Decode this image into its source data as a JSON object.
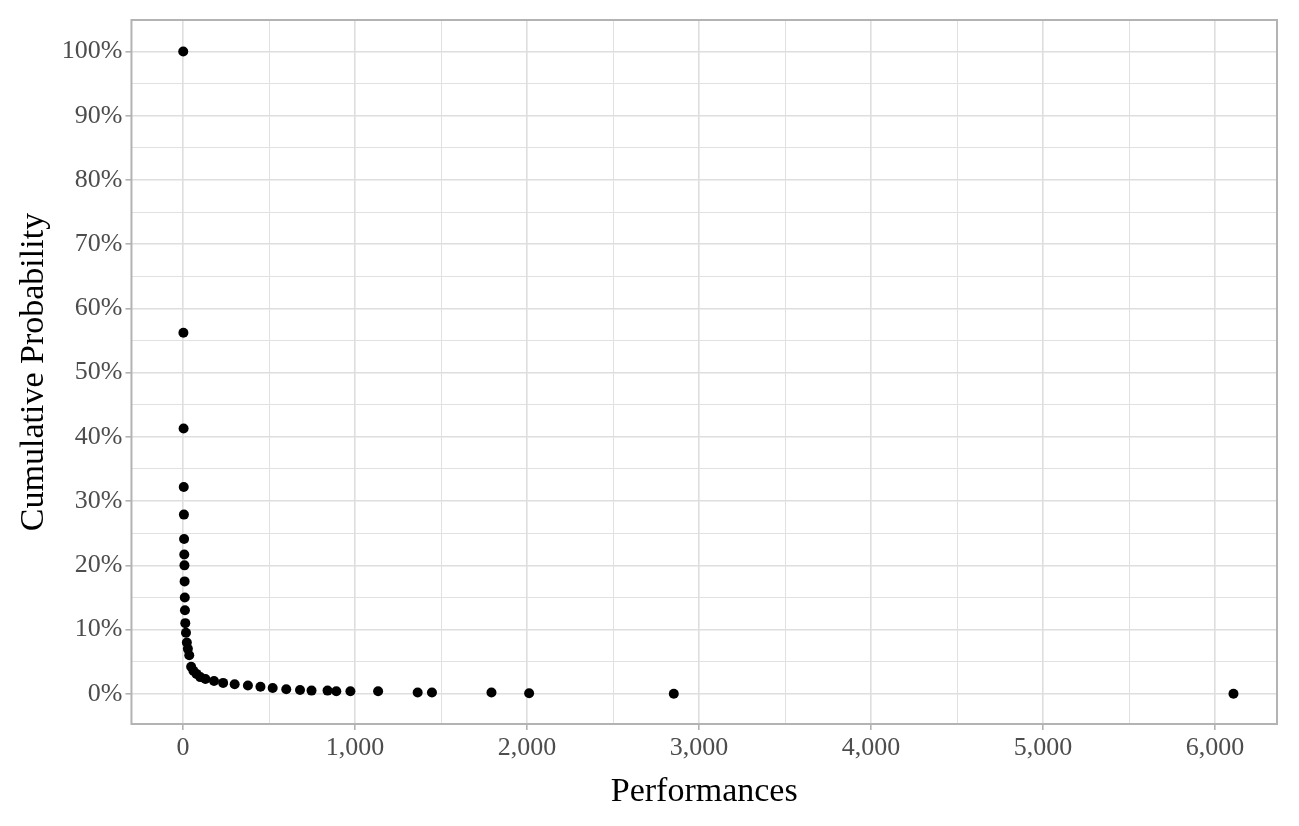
{
  "chart_data": {
    "type": "scatter",
    "xlabel": "Performances",
    "ylabel": "Cumulative Probability",
    "marker": "circle",
    "grid": true,
    "legend": false,
    "xlim": [
      -300,
      6360
    ],
    "ylim": [
      -4.7,
      104.9
    ],
    "xticks": [
      0,
      {
        "value": 500,
        "label": null
      },
      {
        "value": 1000,
        "label": "1,000"
      },
      {
        "value": 1500,
        "label": null
      },
      {
        "value": 2000,
        "label": "2,000"
      },
      {
        "value": 2500,
        "label": null
      },
      {
        "value": 3000,
        "label": "3,000"
      },
      {
        "value": 3500,
        "label": null
      },
      {
        "value": 4000,
        "label": "4,000"
      },
      {
        "value": 4500,
        "label": null
      },
      {
        "value": 5000,
        "label": "5,000"
      },
      {
        "value": 5500,
        "label": null
      },
      {
        "value": 6000,
        "label": "6,000"
      }
    ],
    "yticks": [
      {
        "value": 0,
        "label": "0%"
      },
      {
        "value": 5,
        "label": null
      },
      {
        "value": 10,
        "label": "10%"
      },
      {
        "value": 15,
        "label": null
      },
      {
        "value": 20,
        "label": "20%"
      },
      {
        "value": 25,
        "label": null
      },
      {
        "value": 30,
        "label": "30%"
      },
      {
        "value": 35,
        "label": null
      },
      {
        "value": 40,
        "label": "40%"
      },
      {
        "value": 45,
        "label": null
      },
      {
        "value": 50,
        "label": "50%"
      },
      {
        "value": 55,
        "label": null
      },
      {
        "value": 60,
        "label": "60%"
      },
      {
        "value": 65,
        "label": null
      },
      {
        "value": 70,
        "label": "70%"
      },
      {
        "value": 75,
        "label": null
      },
      {
        "value": 80,
        "label": "80%"
      },
      {
        "value": 85,
        "label": null
      },
      {
        "value": 90,
        "label": "90%"
      },
      {
        "value": 95,
        "label": null
      },
      {
        "value": 100,
        "label": "100%"
      }
    ],
    "series": [
      {
        "color": "#000000",
        "x": [
          1,
          2,
          3,
          4,
          5,
          6,
          7,
          8,
          9,
          10,
          11,
          13,
          17,
          22,
          28,
          36,
          47,
          60,
          78,
          100,
          130,
          180,
          233,
          300,
          377,
          450,
          521,
          600,
          680,
          747,
          840,
          891,
          973,
          1134,
          1364,
          1447,
          1793,
          2012,
          2853,
          6107
        ],
        "values": [
          100,
          56.2,
          41.3,
          32.2,
          27.9,
          24.1,
          21.7,
          20,
          17.5,
          15,
          13,
          11,
          9.5,
          8,
          7,
          6,
          4.2,
          3.6,
          3.1,
          2.6,
          2.3,
          2,
          1.7,
          1.5,
          1.3,
          1.1,
          0.9,
          0.7,
          0.6,
          0.5,
          0.5,
          0.4,
          0.4,
          0.4,
          0.2,
          0.2,
          0.2,
          0.1,
          0,
          0
        ]
      }
    ]
  }
}
